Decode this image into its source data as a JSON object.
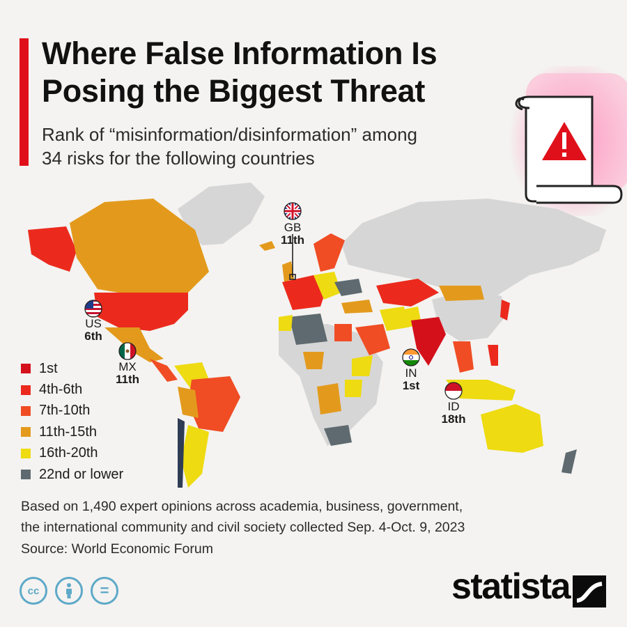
{
  "header": {
    "title_line1": "Where False Information Is",
    "title_line2": "Posing the Biggest Threat",
    "subtitle_line1": "Rank of “misinformation/disinformation” among",
    "subtitle_line2": "34 risks for the following countries"
  },
  "colors": {
    "accent": "#e0101a",
    "no_data": "#d6d6d6",
    "ocean": "#f4f3f1"
  },
  "legend": [
    {
      "label": "1st",
      "color": "#d4101b"
    },
    {
      "label": "4th-6th",
      "color": "#eb2a1d"
    },
    {
      "label": "7th-10th",
      "color": "#f04d24"
    },
    {
      "label": "11th-15th",
      "color": "#e39a1c"
    },
    {
      "label": "16th-20th",
      "color": "#eedb11"
    },
    {
      "label": "22nd or lower",
      "color": "#5e6a6f"
    }
  ],
  "callouts": {
    "gb": {
      "code": "GB",
      "rank": "11th",
      "flag": "uk-flag-icon"
    },
    "us": {
      "code": "US",
      "rank": "6th",
      "flag": "us-flag-icon"
    },
    "mx": {
      "code": "MX",
      "rank": "11th",
      "flag": "mexico-flag-icon"
    },
    "in": {
      "code": "IN",
      "rank": "1st",
      "flag": "india-flag-icon"
    },
    "id": {
      "code": "ID",
      "rank": "18th",
      "flag": "indonesia-flag-icon"
    }
  },
  "note_line1": "Based on 1,490 expert opinions across academia, business, government,",
  "note_line2": "the international community and civil society collected Sep. 4-Oct. 9, 2023",
  "source": "Source: World Economic Forum",
  "license_icons": [
    "cc-icon",
    "attribution-icon",
    "no-derivatives-icon"
  ],
  "license_glyphs": {
    "cc": "cc",
    "equals": "="
  },
  "brand": "statista"
}
